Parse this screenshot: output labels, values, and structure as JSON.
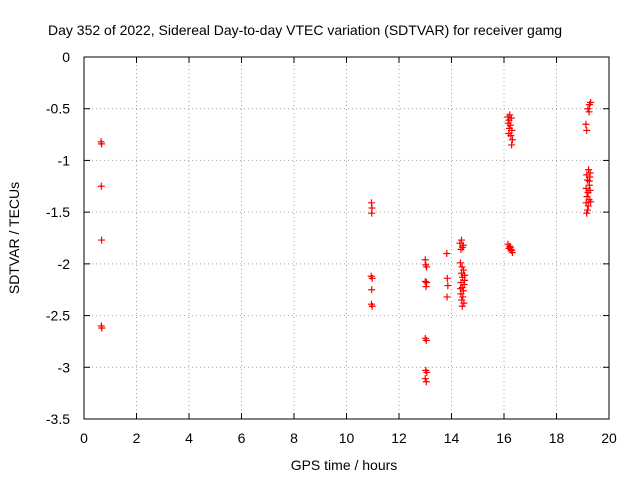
{
  "chart_data": {
    "type": "scatter",
    "title": "Day 352 of 2022, Sidereal Day-to-day VTEC variation (SDTVAR) for receiver gamg",
    "xlabel": "GPS time / hours",
    "ylabel": "SDTVAR / TECUs",
    "xlim": [
      0,
      20
    ],
    "ylim": [
      -3.5,
      0
    ],
    "xticks": [
      0,
      2,
      4,
      6,
      8,
      10,
      12,
      14,
      16,
      18,
      20
    ],
    "yticks": [
      0,
      -0.5,
      -1,
      -1.5,
      -2,
      -2.5,
      -3,
      -3.5
    ],
    "xtick_labels": [
      "0",
      "2",
      "4",
      "6",
      "8",
      "10",
      "12",
      "14",
      "16",
      "18",
      "20"
    ],
    "ytick_labels": [
      "0",
      "-0.5",
      "-1",
      "-1.5",
      "-2",
      "-2.5",
      "-3",
      "-3.5"
    ],
    "grid": true,
    "marker": "+",
    "marker_color": "#ff0000",
    "series": [
      {
        "name": "SDTVAR",
        "points": [
          [
            0.65,
            -0.82
          ],
          [
            0.67,
            -0.84
          ],
          [
            0.66,
            -1.25
          ],
          [
            0.67,
            -1.77
          ],
          [
            0.66,
            -2.6
          ],
          [
            0.68,
            -2.62
          ],
          [
            10.95,
            -1.41
          ],
          [
            10.97,
            -1.46
          ],
          [
            10.96,
            -1.51
          ],
          [
            10.94,
            -2.12
          ],
          [
            10.98,
            -2.14
          ],
          [
            10.96,
            -2.25
          ],
          [
            10.95,
            -2.39
          ],
          [
            10.98,
            -2.41
          ],
          [
            13.0,
            -1.96
          ],
          [
            13.02,
            -2.01
          ],
          [
            13.05,
            -2.03
          ],
          [
            13.0,
            -2.17
          ],
          [
            13.03,
            -2.22
          ],
          [
            13.05,
            -2.18
          ],
          [
            13.0,
            -2.72
          ],
          [
            13.04,
            -2.74
          ],
          [
            13.02,
            -3.03
          ],
          [
            13.06,
            -3.05
          ],
          [
            13.0,
            -3.11
          ],
          [
            13.04,
            -3.14
          ],
          [
            13.82,
            -1.9
          ],
          [
            13.84,
            -2.14
          ],
          [
            13.86,
            -2.21
          ],
          [
            13.83,
            -2.32
          ],
          [
            14.32,
            -1.8
          ],
          [
            14.38,
            -1.77
          ],
          [
            14.42,
            -1.84
          ],
          [
            14.36,
            -1.86
          ],
          [
            14.45,
            -1.82
          ],
          [
            14.34,
            -1.99
          ],
          [
            14.4,
            -2.03
          ],
          [
            14.46,
            -2.06
          ],
          [
            14.38,
            -2.09
          ],
          [
            14.5,
            -2.11
          ],
          [
            14.42,
            -2.13
          ],
          [
            14.36,
            -2.18
          ],
          [
            14.48,
            -2.2
          ],
          [
            14.41,
            -2.23
          ],
          [
            14.45,
            -2.26
          ],
          [
            14.36,
            -2.29
          ],
          [
            14.43,
            -2.32
          ],
          [
            14.39,
            -2.35
          ],
          [
            14.47,
            -2.38
          ],
          [
            14.41,
            -2.41
          ],
          [
            14.5,
            -2.16
          ],
          [
            14.34,
            -2.24
          ],
          [
            16.15,
            -0.58
          ],
          [
            16.22,
            -0.56
          ],
          [
            16.19,
            -0.61
          ],
          [
            16.28,
            -0.59
          ],
          [
            16.16,
            -0.64
          ],
          [
            16.24,
            -0.66
          ],
          [
            16.2,
            -0.69
          ],
          [
            16.3,
            -0.71
          ],
          [
            16.18,
            -0.74
          ],
          [
            16.26,
            -0.76
          ],
          [
            16.32,
            -0.8
          ],
          [
            16.29,
            -0.85
          ],
          [
            16.15,
            -1.81
          ],
          [
            16.22,
            -1.83
          ],
          [
            16.19,
            -1.85
          ],
          [
            16.28,
            -1.87
          ],
          [
            16.24,
            -1.84
          ],
          [
            16.32,
            -1.89
          ],
          [
            16.26,
            -1.86
          ],
          [
            19.12,
            -0.65
          ],
          [
            19.15,
            -0.71
          ],
          [
            19.2,
            -0.5
          ],
          [
            19.26,
            -0.46
          ],
          [
            19.24,
            -0.53
          ],
          [
            19.3,
            -0.44
          ],
          [
            19.15,
            -1.14
          ],
          [
            19.22,
            -1.09
          ],
          [
            19.28,
            -1.12
          ],
          [
            19.18,
            -1.19
          ],
          [
            19.25,
            -1.24
          ],
          [
            19.13,
            -1.27
          ],
          [
            19.2,
            -1.31
          ],
          [
            19.28,
            -1.29
          ],
          [
            19.16,
            -1.35
          ],
          [
            19.24,
            -1.38
          ],
          [
            19.13,
            -1.41
          ],
          [
            19.21,
            -1.44
          ],
          [
            19.3,
            -1.4
          ],
          [
            19.18,
            -1.48
          ],
          [
            19.15,
            -1.51
          ],
          [
            19.25,
            -1.2
          ],
          [
            19.27,
            -1.16
          ]
        ]
      }
    ]
  }
}
